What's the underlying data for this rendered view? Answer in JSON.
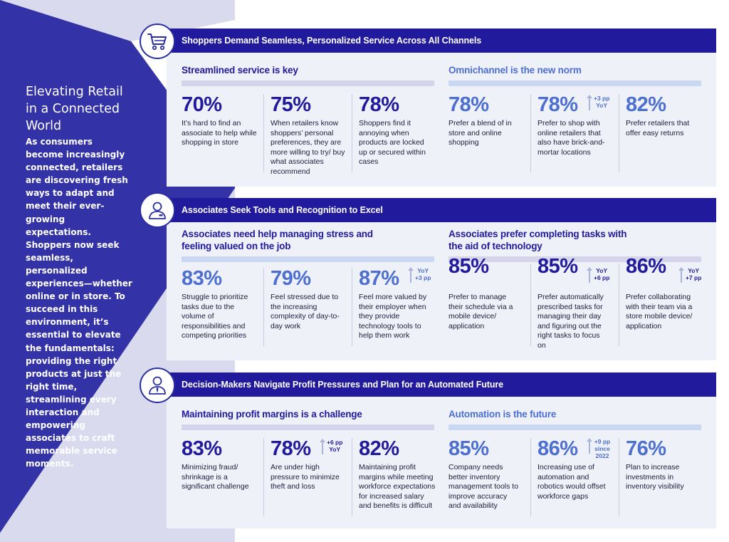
{
  "intro": {
    "title": "Elevating  Retail in a Connected World",
    "body": "As consumers become increasingly connected, retailers are discovering fresh ways to adapt and meet their ever-growing expectations. Shoppers now seek seamless, personalized experiences—whether online or in store. To succeed in this environment,  it’s essential to elevate the fundamentals: providing the right products at just the right time, streamlining every interaction and empowering associates to craft memorable service moments."
  },
  "colors": {
    "navy": "#221a9c",
    "blue": "#4c6fd0",
    "lavender": "#d9daee",
    "card": "#eff1f8"
  },
  "sections": [
    {
      "icon": "shopping-cart-icon",
      "header": "Shoppers Demand Seamless, Personalized Service Across All Channels",
      "left": {
        "title": "Streamlined service is key",
        "stats": [
          {
            "value": "70%",
            "desc": "It’s hard to find an associate to help while shopping in store"
          },
          {
            "value": "75%",
            "desc": "When retailers know shoppers’ personal preferences, they are more willing to try/ buy what associates recommend"
          },
          {
            "value": "78%",
            "desc": "Shoppers find it annoying when products are locked up or secured within cases"
          }
        ]
      },
      "right": {
        "title": "Omnichannel is the new norm",
        "stats": [
          {
            "value": "78%",
            "desc": "Prefer a blend of in store and online shopping"
          },
          {
            "value": "78%",
            "desc": "Prefer to shop with online retailers that also have brick-and-mortar locations",
            "delta_top": "+3 pp",
            "delta_bottom": "YoY"
          },
          {
            "value": "82%",
            "desc": "Prefer retailers that offer easy returns"
          }
        ]
      }
    },
    {
      "icon": "associate-person-icon",
      "header": "Associates Seek Tools and Recognition to Excel",
      "left": {
        "title": "Associates need help managing stress and feeling valued on the job",
        "stats": [
          {
            "value": "83%",
            "desc": "Struggle to prioritize tasks due to the volume of responsibilities and competing priorities"
          },
          {
            "value": "79%",
            "desc": "Feel stressed due to the increasing complexity of day-to-day  work"
          },
          {
            "value": "87%",
            "desc": "Feel more valued by their employer when they provide technology tools to help them work",
            "delta_top": "YoY",
            "delta_bottom": "+3 pp"
          }
        ]
      },
      "right": {
        "title": "Associates prefer completing tasks with the aid of technology",
        "stats": [
          {
            "value": "85%",
            "desc": "Prefer to manage their schedule via a mobile device/ application"
          },
          {
            "value": "85%",
            "desc": "Prefer automatically prescribed tasks for managing their day and figuring out the right tasks to focus on",
            "delta_top": "YoY",
            "delta_bottom": "+6 pp"
          },
          {
            "value": "86%",
            "desc": "Prefer   collaborating with their team via a store mobile device/ application",
            "delta_top": "YoY",
            "delta_bottom": "+7 pp"
          }
        ]
      }
    },
    {
      "icon": "decision-maker-tie-icon",
      "header": "Decision-Makers Navigate Profit Pressures and Plan for an Automated Future",
      "left": {
        "title": "Maintaining profit margins is a challenge",
        "stats": [
          {
            "value": "83%",
            "desc": "Minimizing fraud/ shrinkage is a significant challenge"
          },
          {
            "value": "78%",
            "desc": "Are under high pressure to minimize theft and loss",
            "delta_top": "+6 pp",
            "delta_bottom": "YoY"
          },
          {
            "value": "82%",
            "desc": "Maintaining profit margins while meeting workforce expectations for increased salary and benefits is difficult"
          }
        ]
      },
      "right": {
        "title": "Automation is the future",
        "stats": [
          {
            "value": "85%",
            "desc": "Company needs better inventory management tools to improve accuracy and availability"
          },
          {
            "value": "86%",
            "desc": "Increasing use of automation and robotics would offset workforce gaps",
            "delta_top": "+9 pp",
            "delta_bottom": "since 2022"
          },
          {
            "value": "76%",
            "desc": "Plan to increase investments in inventory visibility"
          }
        ]
      }
    }
  ]
}
